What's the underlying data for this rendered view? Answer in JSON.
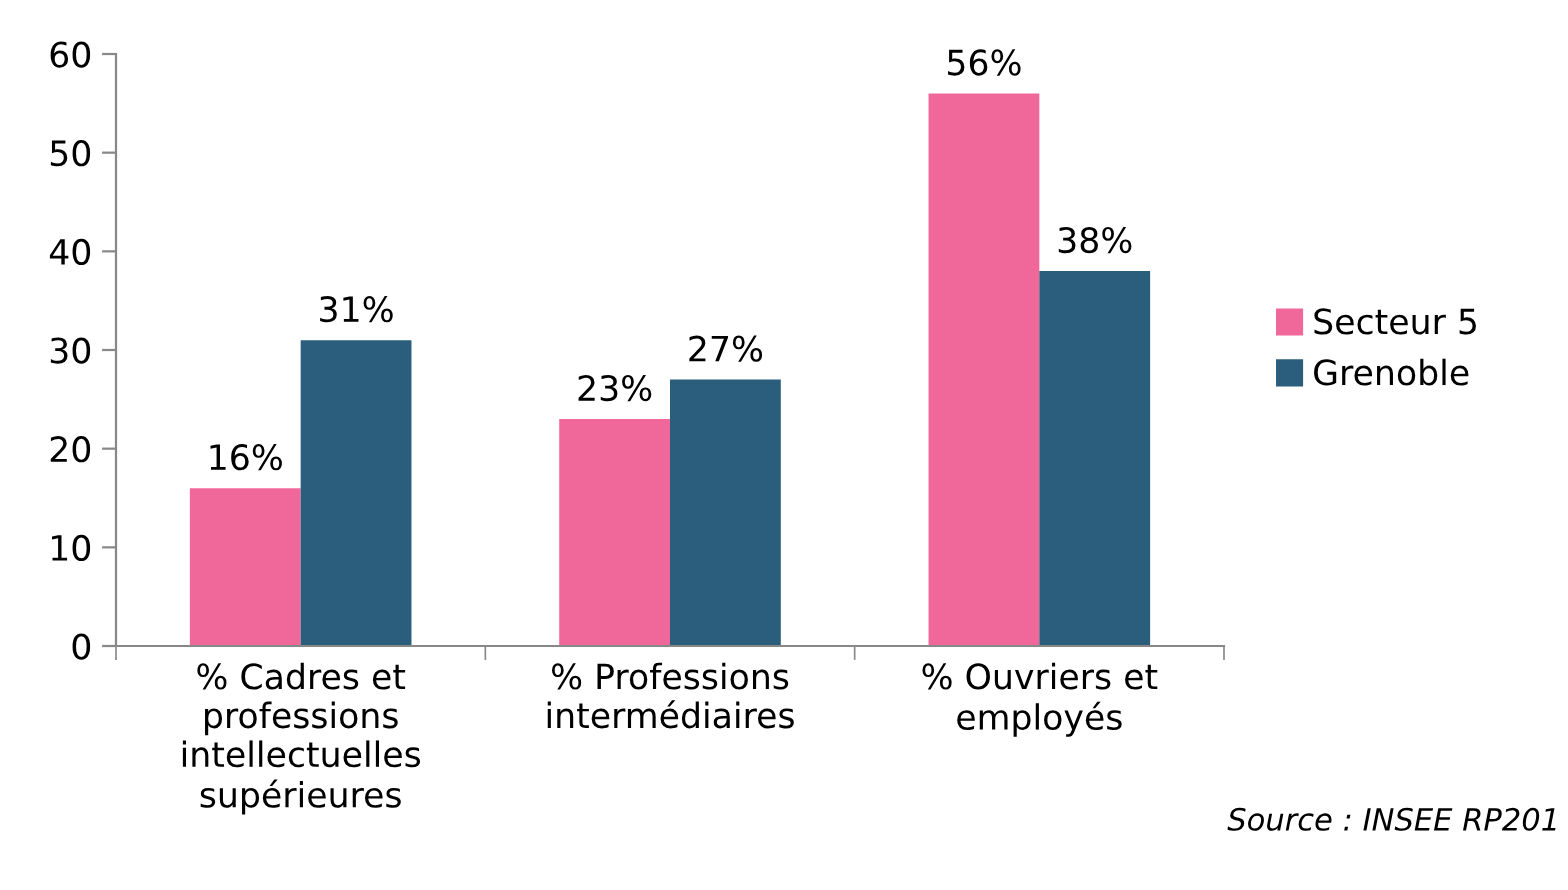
{
  "chart_data": {
    "type": "bar",
    "categories": [
      "% Cadres et\nprofessions\nintellectuelles\nsupérieures",
      "% Professions\nintermédiaires",
      "% Ouvriers et\nemployés"
    ],
    "series": [
      {
        "name": "Secteur 5",
        "color": "#f0679a",
        "values": [
          16,
          23,
          56
        ],
        "value_labels": [
          "16%",
          "23%",
          "56%"
        ]
      },
      {
        "name": "Grenoble",
        "color": "#2b5d7c",
        "values": [
          31,
          27,
          38
        ],
        "value_labels": [
          "31%",
          "27%",
          "38%"
        ]
      }
    ],
    "ylim": [
      0,
      60
    ],
    "yticks": [
      0,
      10,
      20,
      30,
      40,
      50,
      60
    ],
    "grid": false,
    "legend": "right",
    "annotations": [
      "Source : INSEE RP201"
    ]
  }
}
